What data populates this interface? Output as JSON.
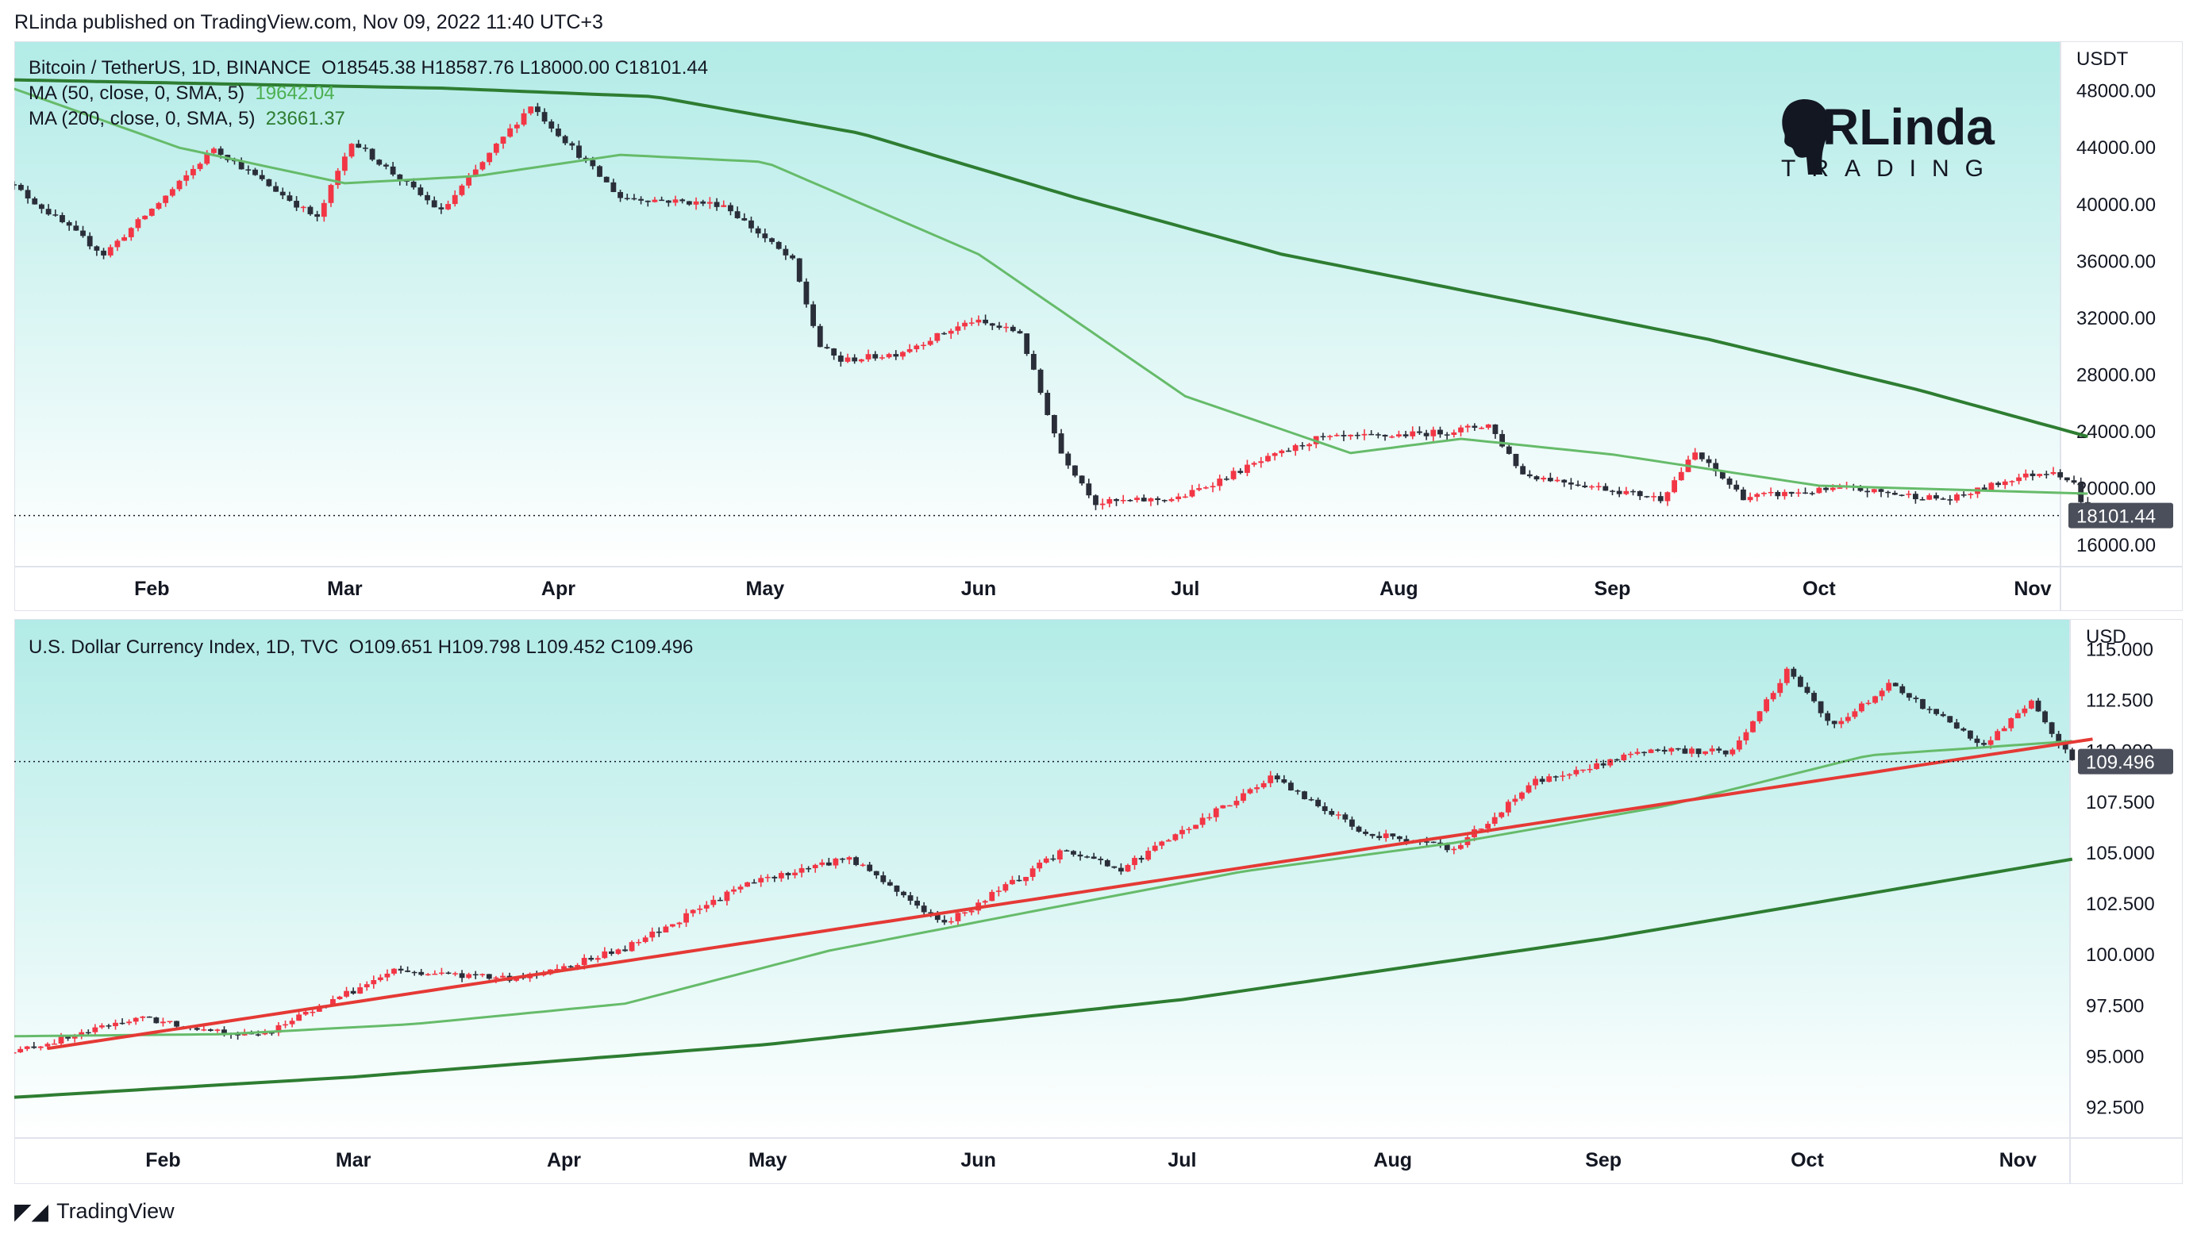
{
  "header": {
    "publisher": "RLinda published on TradingView.com, Nov 09, 2022 11:40 UTC+3"
  },
  "footer": {
    "brand": "TradingView"
  },
  "logo": {
    "name": "RLinda",
    "sub": "TRADING"
  },
  "months": [
    "Feb",
    "Mar",
    "Apr",
    "May",
    "Jun",
    "Jul",
    "Aug",
    "Sep",
    "Oct",
    "Nov"
  ],
  "btc": {
    "title": "Bitcoin / TetherUS, 1D, BINANCE",
    "ohlc": "O18545.38  H18587.76  L18000.00  C18101.44",
    "ma50_label": "MA (50, close, 0, SMA, 5)",
    "ma50_value": "19642.04",
    "ma200_label": "MA (200, close, 0, SMA, 5)",
    "ma200_value": "23661.37",
    "currency": "USDT",
    "last_price": "18101.44",
    "yticks": [
      "48000.00",
      "44000.00",
      "40000.00",
      "36000.00",
      "32000.00",
      "28000.00",
      "24000.00",
      "20000.00",
      "16000.00"
    ]
  },
  "dxy": {
    "title": "U.S. Dollar Currency Index, 1D, TVC",
    "ohlc": "O109.651  H109.798  L109.452  C109.496",
    "currency": "USD",
    "last_price": "109.496",
    "yticks": [
      "115.000",
      "112.500",
      "110.000",
      "107.500",
      "105.000",
      "102.500",
      "100.000",
      "97.500",
      "95.000",
      "92.500"
    ]
  },
  "chart_data": [
    {
      "type": "candlestick",
      "title": "Bitcoin / TetherUS, 1D, BINANCE",
      "ylim": [
        14500,
        51500
      ],
      "x": [
        "2022-01-10",
        "2022-01-25",
        "2022-02-05",
        "2022-02-10",
        "2022-02-25",
        "2022-03-02",
        "2022-03-15",
        "2022-03-28",
        "2022-04-10",
        "2022-04-25",
        "2022-05-05",
        "2022-05-09",
        "2022-05-12",
        "2022-05-20",
        "2022-05-31",
        "2022-06-07",
        "2022-06-13",
        "2022-06-18",
        "2022-06-30",
        "2022-07-10",
        "2022-07-20",
        "2022-07-30",
        "2022-08-08",
        "2022-08-14",
        "2022-08-19",
        "2022-08-31",
        "2022-09-08",
        "2022-09-13",
        "2022-09-20",
        "2022-10-05",
        "2022-10-20",
        "2022-10-29",
        "2022-11-04",
        "2022-11-07",
        "2022-11-09"
      ],
      "y": [
        42000,
        36500,
        41500,
        44000,
        39000,
        44500,
        39500,
        47000,
        40500,
        40000,
        36000,
        30000,
        29000,
        29500,
        31800,
        31000,
        22500,
        19000,
        19300,
        21500,
        23500,
        23700,
        24000,
        24500,
        21000,
        20000,
        19300,
        22500,
        19400,
        20000,
        19200,
        20700,
        21300,
        20300,
        18101
      ],
      "series": [
        {
          "name": "MA (50, close, 0, SMA, 5)",
          "x": [
            "2022-01-10",
            "2022-02-05",
            "2022-03-01",
            "2022-03-20",
            "2022-04-10",
            "2022-05-01",
            "2022-06-01",
            "2022-07-01",
            "2022-07-25",
            "2022-08-10",
            "2022-09-01",
            "2022-10-01",
            "2022-11-09"
          ],
          "y": [
            48500,
            44000,
            41500,
            42000,
            43500,
            43000,
            36500,
            26500,
            22500,
            23500,
            22400,
            20200,
            19642
          ]
        },
        {
          "name": "MA (200, close, 0, SMA, 5)",
          "x": [
            "2022-01-10",
            "2022-03-15",
            "2022-04-15",
            "2022-05-15",
            "2022-06-15",
            "2022-07-15",
            "2022-08-15",
            "2022-09-15",
            "2022-10-15",
            "2022-11-09"
          ],
          "y": [
            48800,
            48200,
            47600,
            45000,
            40500,
            36500,
            33500,
            30500,
            27000,
            23661
          ]
        }
      ]
    },
    {
      "type": "candlestick",
      "title": "U.S. Dollar Currency Index, 1D, TVC",
      "ylim": [
        91,
        116.5
      ],
      "x": [
        "2022-01-10",
        "2022-01-28",
        "2022-02-15",
        "2022-03-07",
        "2022-03-25",
        "2022-04-10",
        "2022-04-28",
        "2022-05-13",
        "2022-05-27",
        "2022-06-14",
        "2022-06-22",
        "2022-07-14",
        "2022-07-28",
        "2022-08-10",
        "2022-08-22",
        "2022-09-07",
        "2022-09-20",
        "2022-09-28",
        "2022-10-05",
        "2022-10-13",
        "2022-10-27",
        "2022-11-03",
        "2022-11-09"
      ],
      "y": [
        95.2,
        96.9,
        96.0,
        99.2,
        98.8,
        100.3,
        103.5,
        104.8,
        101.5,
        105.2,
        104.2,
        108.7,
        106.0,
        105.2,
        108.5,
        110.0,
        110.0,
        114.0,
        111.2,
        113.3,
        110.3,
        112.4,
        109.5
      ],
      "series": [
        {
          "name": "",
          "x": [
            "2022-01-10",
            "2022-02-10",
            "2022-03-10",
            "2022-04-10",
            "2022-05-10",
            "2022-06-10",
            "2022-07-10",
            "2022-08-10",
            "2022-09-10",
            "2022-10-10",
            "2022-11-09"
          ],
          "y": [
            96.0,
            96.1,
            96.6,
            97.6,
            100.2,
            102.2,
            104.1,
            105.5,
            107.3,
            109.8,
            110.5
          ]
        },
        {
          "name": "",
          "x": [
            "2022-01-10",
            "2022-03-01",
            "2022-05-01",
            "2022-07-01",
            "2022-09-01",
            "2022-11-09"
          ],
          "y": [
            93.0,
            94.0,
            95.6,
            97.8,
            100.8,
            104.7
          ]
        },
        {
          "name": "",
          "x": [
            "2022-01-15",
            "2022-11-12"
          ],
          "y": [
            95.4,
            110.6
          ]
        }
      ]
    }
  ]
}
